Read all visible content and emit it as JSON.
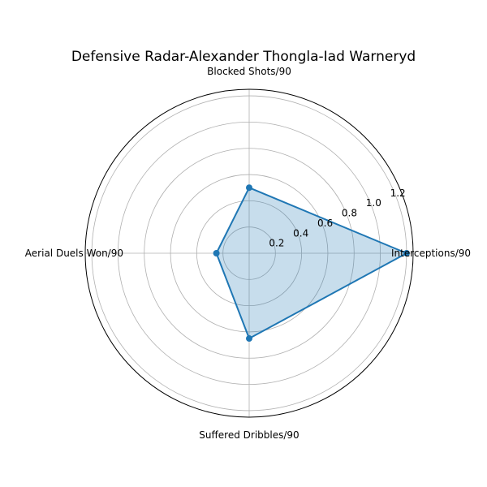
{
  "chart_data": {
    "type": "radar",
    "title": "Defensive Radar-Alexander Thongla-Iad Warneryd",
    "categories": [
      "Interceptions/90",
      "Blocked Shots/90",
      "Aerial Duels Won/90",
      "Suffered Dribbles/90"
    ],
    "series": [
      {
        "values": [
          1.2,
          0.5,
          0.25,
          0.65
        ]
      }
    ],
    "rlim": [
      0,
      1.25
    ],
    "r_ticks": [
      0.2,
      0.4,
      0.6,
      0.8,
      1.0,
      1.2
    ],
    "r_tick_labels": [
      "0.2",
      "0.4",
      "0.6",
      "0.8",
      "1.0",
      "1.2"
    ],
    "grid": true,
    "colors": {
      "line": "#1f77b4",
      "fill": "#1f77b4"
    }
  }
}
